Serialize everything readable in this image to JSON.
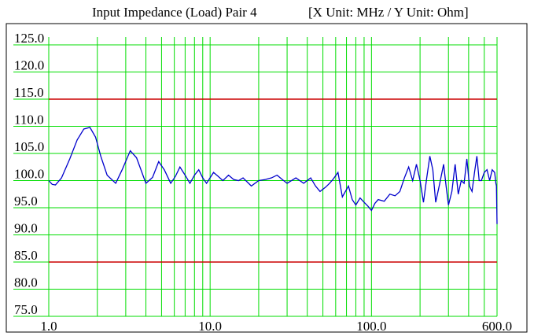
{
  "chart_data": {
    "type": "line",
    "title": "Input Impedance (Load) Pair 4",
    "subtitle": "[X Unit: MHz / Y Unit: Ohm]",
    "x_scale": "log",
    "xlim": [
      1,
      600
    ],
    "ylim": [
      75,
      125
    ],
    "xticks": [
      {
        "value": 1,
        "label": "1.0"
      },
      {
        "value": 10,
        "label": "10.0"
      },
      {
        "value": 100,
        "label": "100.0"
      },
      {
        "value": 600,
        "label": "600.0"
      }
    ],
    "x_minor_ticks": [
      2,
      3,
      4,
      5,
      6,
      7,
      8,
      9,
      20,
      30,
      40,
      50,
      60,
      70,
      80,
      90,
      200,
      300,
      400,
      500
    ],
    "yticks": [
      {
        "value": 75,
        "label": "75.0"
      },
      {
        "value": 80,
        "label": "80.0"
      },
      {
        "value": 85,
        "label": "85.0"
      },
      {
        "value": 90,
        "label": "90.0"
      },
      {
        "value": 95,
        "label": "95.0"
      },
      {
        "value": 100,
        "label": "100.0"
      },
      {
        "value": 105,
        "label": "105.0"
      },
      {
        "value": 110,
        "label": "110.0"
      },
      {
        "value": 115,
        "label": "115.0"
      },
      {
        "value": 120,
        "label": "120.0"
      },
      {
        "value": 125,
        "label": "125.0"
      }
    ],
    "grid": true,
    "grid_color": "#00dd00",
    "limit_lines": [
      {
        "value": 115,
        "color": "#cc0000"
      },
      {
        "value": 85,
        "color": "#cc0000"
      }
    ],
    "series": [
      {
        "name": "Pair 4",
        "color": "#0000cc",
        "x": [
          1,
          1.05,
          1.1,
          1.2,
          1.35,
          1.5,
          1.65,
          1.8,
          1.95,
          2.1,
          2.3,
          2.6,
          2.85,
          3.2,
          3.5,
          4,
          4.4,
          4.8,
          5.2,
          5.7,
          6.1,
          6.5,
          7,
          7.5,
          8,
          8.5,
          9,
          9.5,
          10.5,
          11.2,
          12,
          13,
          14,
          15,
          16,
          18,
          20,
          22,
          24,
          26,
          28,
          30,
          34,
          38,
          42,
          45,
          48,
          52,
          55,
          58,
          62,
          66,
          72,
          76,
          80,
          85,
          90,
          95,
          100,
          105,
          110,
          120,
          130,
          140,
          150,
          160,
          170,
          180,
          190,
          200,
          210,
          220,
          230,
          240,
          250,
          265,
          280,
          290,
          300,
          315,
          330,
          345,
          360,
          375,
          390,
          405,
          420,
          435,
          450,
          465,
          480,
          500,
          520,
          540,
          560,
          580,
          590,
          595,
          600
        ],
        "values": [
          100,
          99.3,
          99.2,
          100.5,
          104,
          107.5,
          109.5,
          109.8,
          108,
          104.5,
          101,
          99.5,
          102,
          105.5,
          104.2,
          99.5,
          100.6,
          103.5,
          102,
          99.5,
          100.8,
          102.5,
          101,
          99.5,
          101,
          102,
          100.5,
          99.5,
          101.5,
          100.8,
          100,
          101,
          100.2,
          100,
          100.5,
          99,
          100,
          100.2,
          100.5,
          101,
          100.2,
          99.5,
          100.5,
          99.5,
          100.5,
          99,
          98,
          98.8,
          99.5,
          100.3,
          101.5,
          97,
          99,
          96.5,
          95.5,
          96.8,
          96,
          95.3,
          94.5,
          95.8,
          96.5,
          96.2,
          97.5,
          97.2,
          98,
          100.5,
          102.5,
          100,
          103,
          100,
          96,
          100.5,
          104.5,
          102,
          96,
          99.5,
          103,
          99,
          95.5,
          98,
          103,
          97.5,
          100,
          99.5,
          104,
          99,
          98,
          101.5,
          104.5,
          100,
          100,
          101.5,
          102,
          100,
          102,
          101.5,
          99.5,
          99,
          92
        ]
      }
    ]
  }
}
